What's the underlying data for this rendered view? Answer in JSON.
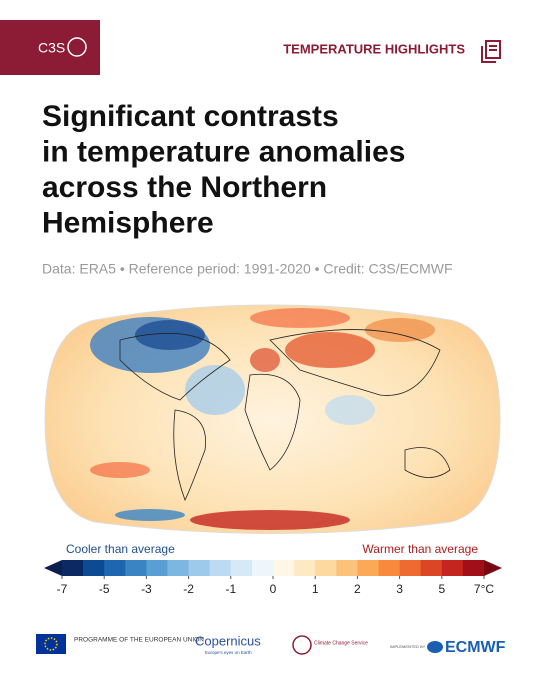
{
  "header": {
    "brand": "C3S",
    "section": "TEMPERATURE HIGHLIGHTS"
  },
  "title_lines": [
    "Significant contrasts",
    "in temperature anomalies",
    "across the Northern",
    "Hemisphere"
  ],
  "subtitle": "Data: ERA5 • Reference period: 1991-2020 • Credit: C3S/ECMWF",
  "colorbar": {
    "cool_label": "Cooler than average",
    "warm_label": "Warmer than average",
    "ticks": [
      -7,
      -5,
      -3,
      -2,
      -1,
      0,
      1,
      2,
      3,
      5,
      {
        "value": 7,
        "label": "7°C"
      }
    ],
    "colors": [
      "#0b2a63",
      "#0d4a94",
      "#1f66b0",
      "#3a84c4",
      "#5a9fd3",
      "#7db6e0",
      "#9dc9ea",
      "#bcdbf2",
      "#d6e9f7",
      "#eef5fb",
      "#fff7e6",
      "#fde9c4",
      "#fdd89f",
      "#fcc27a",
      "#fba957",
      "#f78a3d",
      "#ee6a30",
      "#dc4627",
      "#c4261f",
      "#a10f18"
    ],
    "end_colors": [
      "#0a1f50",
      "#7a0a12"
    ]
  },
  "footer": {
    "eu": "PROGRAMME OF THE EUROPEAN UNION",
    "copernicus": "Copernicus",
    "copernicus_tag": "Europe's eyes on Earth",
    "c3s": "Climate Change Service",
    "implemented": "IMPLEMENTED BY",
    "ecmwf": "ECMWF"
  }
}
